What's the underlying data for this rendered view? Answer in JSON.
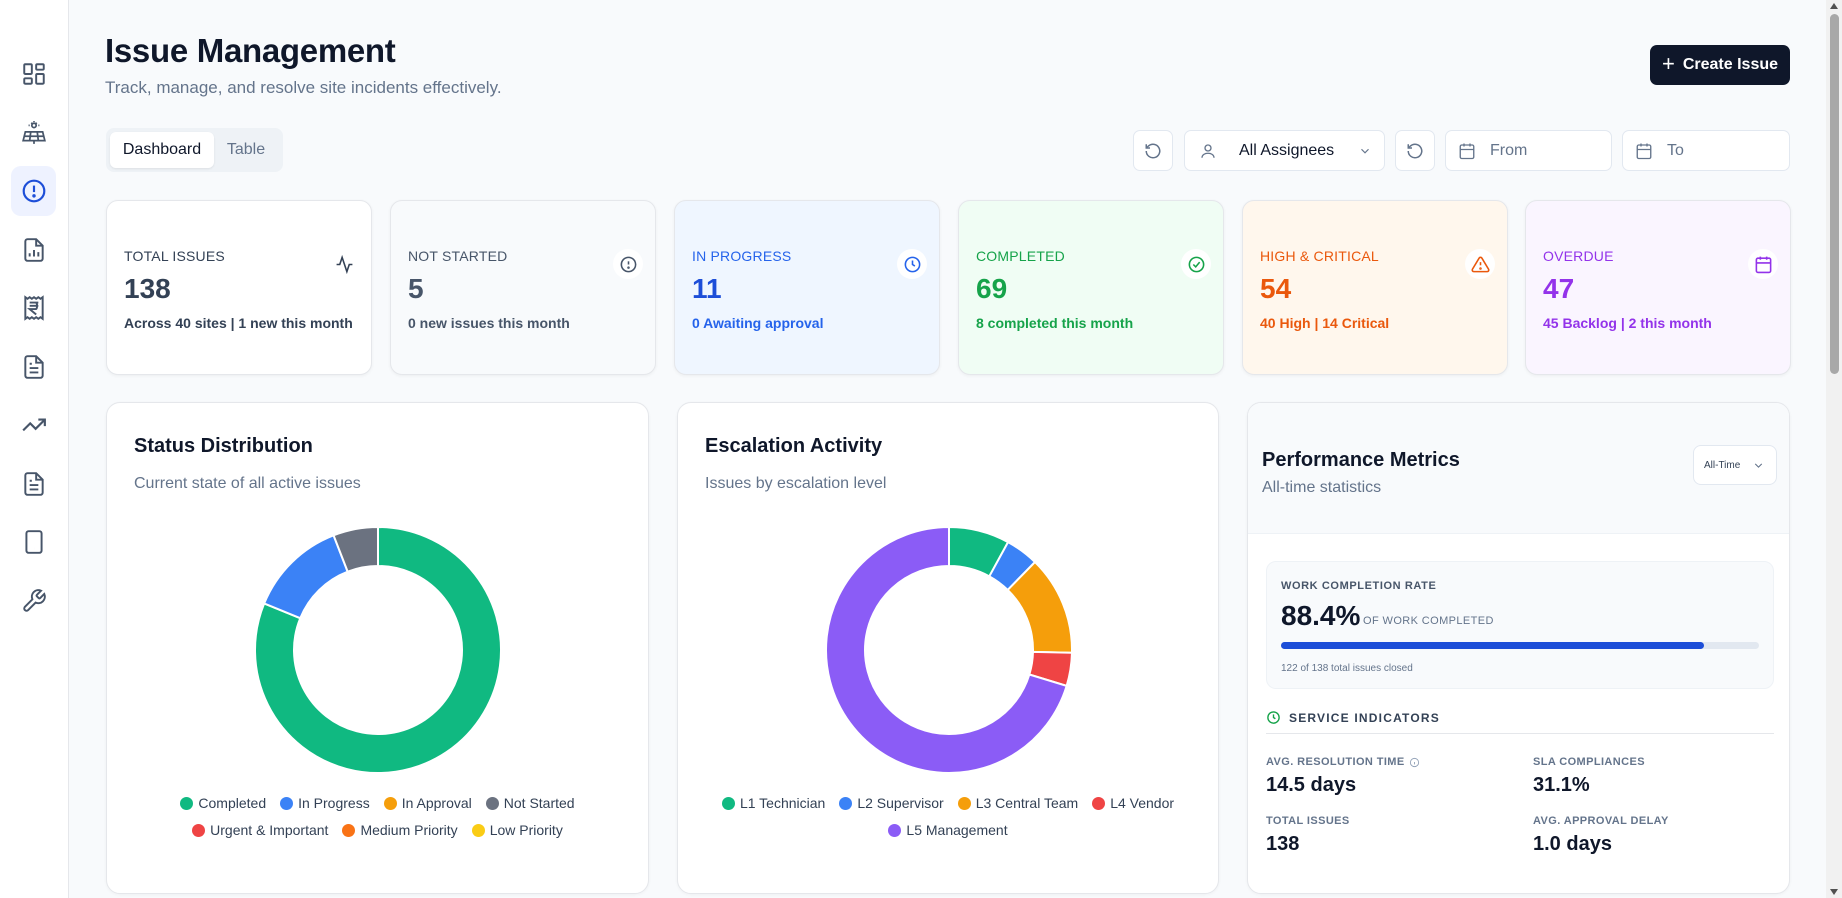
{
  "header": {
    "title": "Issue Management",
    "subtitle": "Track, manage, and resolve site incidents effectively.",
    "create_label": "Create Issue"
  },
  "sidebar": {
    "items": [
      {
        "icon": "dashboard-icon"
      },
      {
        "icon": "solar-panel-icon"
      },
      {
        "icon": "alert-circle-icon",
        "active": true
      },
      {
        "icon": "report-chart-icon"
      },
      {
        "icon": "rupee-receipt-icon"
      },
      {
        "icon": "document-icon"
      },
      {
        "icon": "trending-up-icon"
      },
      {
        "icon": "file-text-icon"
      },
      {
        "icon": "tablet-icon"
      },
      {
        "icon": "wrench-icon"
      }
    ]
  },
  "tabs": [
    {
      "label": "Dashboard",
      "active": true
    },
    {
      "label": "Table",
      "active": false
    }
  ],
  "filters": {
    "assignee": "All Assignees",
    "from_placeholder": "From",
    "to_placeholder": "To"
  },
  "stats": [
    {
      "label": "TOTAL ISSUES",
      "value": "138",
      "sub": "Across 40 sites | 1 new this month",
      "icon": "activity-icon",
      "bg": "#ffffff",
      "color": "#334155",
      "value_color": "#334155"
    },
    {
      "label": "NOT STARTED",
      "value": "5",
      "sub": "0 new issues this month",
      "icon": "alert-circle-icon",
      "bg": "#f8fafc",
      "color": "#475569",
      "value_color": "#475569"
    },
    {
      "label": "IN PROGRESS",
      "value": "11",
      "sub": "0 Awaiting approval",
      "icon": "clock-icon",
      "bg": "#eff6ff",
      "color": "#2563eb",
      "value_color": "#1d4ed8"
    },
    {
      "label": "COMPLETED",
      "value": "69",
      "sub": "8 completed this month",
      "icon": "check-circle-icon",
      "bg": "#f0fdf4",
      "color": "#16a34a",
      "value_color": "#16a34a"
    },
    {
      "label": "HIGH & CRITICAL",
      "value": "54",
      "sub": "40 High | 14 Critical",
      "icon": "warning-triangle-icon",
      "bg": "#fff7ed",
      "color": "#ea580c",
      "value_color": "#ea580c"
    },
    {
      "label": "OVERDUE",
      "value": "47",
      "sub": "45 Backlog | 2 this month",
      "icon": "calendar-icon",
      "bg": "#faf5ff",
      "color": "#9333ea",
      "value_color": "#9333ea"
    }
  ],
  "status_panel": {
    "title": "Status Distribution",
    "subtitle": "Current state of all active issues",
    "legend": [
      {
        "label": "Completed",
        "color": "#10b981"
      },
      {
        "label": "In Progress",
        "color": "#3b82f6"
      },
      {
        "label": "In Approval",
        "color": "#f59e0b"
      },
      {
        "label": "Not Started",
        "color": "#6b7280"
      },
      {
        "label": "Urgent & Important",
        "color": "#ef4444"
      },
      {
        "label": "Medium Priority",
        "color": "#f97316"
      },
      {
        "label": "Low Priority",
        "color": "#facc15"
      }
    ]
  },
  "escalation_panel": {
    "title": "Escalation Activity",
    "subtitle": "Issues by escalation level",
    "legend": [
      {
        "label": "L1 Technician",
        "color": "#10b981"
      },
      {
        "label": "L2 Supervisor",
        "color": "#3b82f6"
      },
      {
        "label": "L3 Central Team",
        "color": "#f59e0b"
      },
      {
        "label": "L4 Vendor",
        "color": "#ef4444"
      },
      {
        "label": "L5 Management",
        "color": "#8b5cf6"
      }
    ]
  },
  "chart_data": [
    {
      "type": "pie",
      "categories": [
        "Completed",
        "In Progress",
        "In Approval",
        "Not Started",
        "Urgent & Important",
        "Medium Priority",
        "Low Priority"
      ],
      "values": [
        69,
        11,
        0,
        5,
        0,
        0,
        0
      ],
      "colors": [
        "#10b981",
        "#3b82f6",
        "#f59e0b",
        "#6b7280",
        "#ef4444",
        "#f97316",
        "#facc15"
      ],
      "title": "Status Distribution",
      "legend": "bottom"
    },
    {
      "type": "pie",
      "categories": [
        "L1 Technician",
        "L2 Supervisor",
        "L3 Central Team",
        "L4 Vendor",
        "L5 Management"
      ],
      "values": [
        11,
        6,
        18,
        6,
        97
      ],
      "colors": [
        "#10b981",
        "#3b82f6",
        "#f59e0b",
        "#ef4444",
        "#8b5cf6"
      ],
      "title": "Escalation Activity",
      "legend": "bottom"
    }
  ],
  "performance": {
    "title": "Performance Metrics",
    "subtitle": "All-time statistics",
    "period": "All-Time",
    "completion_label": "WORK COMPLETION RATE",
    "completion_value": "88.4%",
    "completion_unit": "OF WORK COMPLETED",
    "completion_fraction": 0.884,
    "completion_note": "122 of 138 total issues closed",
    "service_title": "SERVICE INDICATORS",
    "metrics": [
      {
        "label": "AVG. RESOLUTION TIME",
        "value": "14.5 days"
      },
      {
        "label": "SLA COMPLIANCES",
        "value": "31.1%"
      },
      {
        "label": "TOTAL ISSUES",
        "value": "138"
      },
      {
        "label": "AVG. APPROVAL DELAY",
        "value": "1.0 days"
      }
    ]
  }
}
